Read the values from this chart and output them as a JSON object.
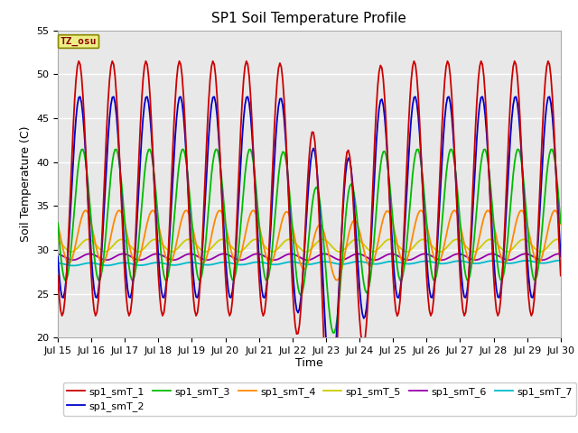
{
  "title": "SP1 Soil Temperature Profile",
  "xlabel": "Time",
  "ylabel": "Soil Temperature (C)",
  "ylim": [
    20,
    55
  ],
  "ytick_values": [
    20,
    25,
    30,
    35,
    40,
    45,
    50,
    55
  ],
  "xtick_labels": [
    "Jul 15",
    "Jul 16",
    "Jul 17",
    "Jul 18",
    "Jul 19",
    "Jul 20",
    "Jul 21",
    "Jul 22",
    "Jul 23",
    "Jul 24",
    "Jul 25",
    "Jul 26",
    "Jul 27",
    "Jul 28",
    "Jul 29",
    "Jul 30"
  ],
  "series_colors": {
    "sp1_smT_1": "#cc0000",
    "sp1_smT_2": "#0000cc",
    "sp1_smT_3": "#00bb00",
    "sp1_smT_4": "#ff8800",
    "sp1_smT_5": "#cccc00",
    "sp1_smT_6": "#9900aa",
    "sp1_smT_7": "#00bbcc"
  },
  "annotation_text": "TZ_osu",
  "annotation_color": "#880000",
  "annotation_bg": "#eeee88",
  "annotation_border": "#888800",
  "plot_bg": "#e8e8e8",
  "grid_color": "#ffffff",
  "line_width": 1.3,
  "fig_width": 6.4,
  "fig_height": 4.8,
  "dpi": 100,
  "title_fontsize": 11,
  "axis_fontsize": 8,
  "legend_fontsize": 8
}
